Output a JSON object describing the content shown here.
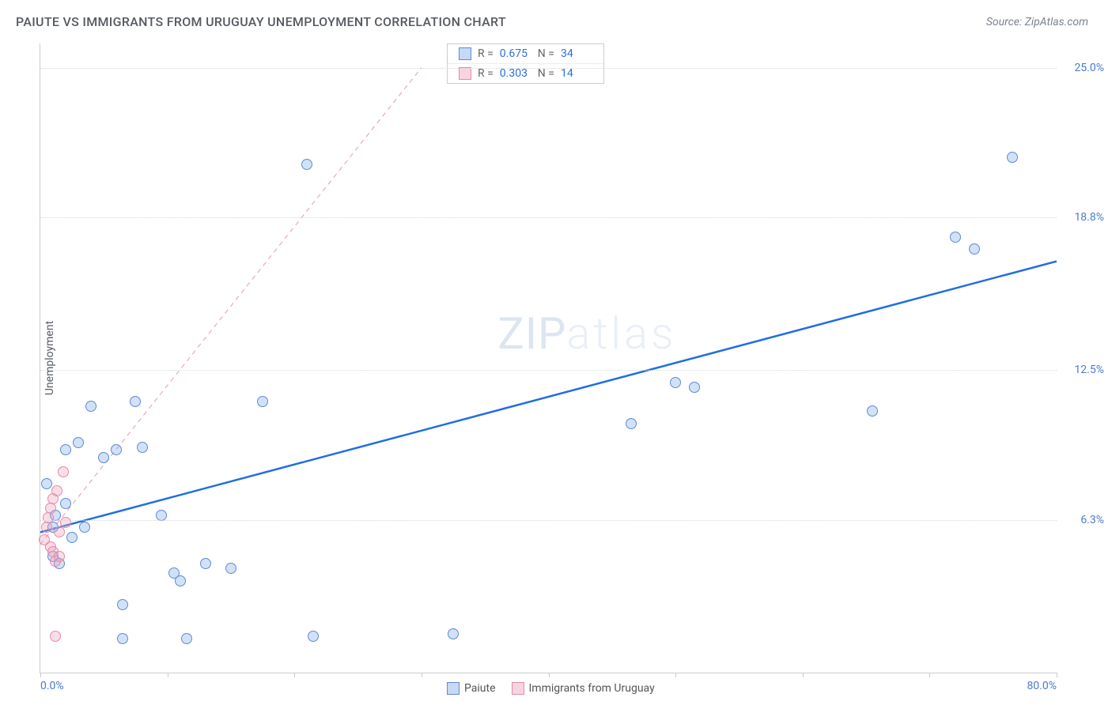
{
  "title": "PAIUTE VS IMMIGRANTS FROM URUGUAY UNEMPLOYMENT CORRELATION CHART",
  "source": "Source: ZipAtlas.com",
  "ylabel": "Unemployment",
  "watermark_bold": "ZIP",
  "watermark_thin": "atlas",
  "chart": {
    "type": "scatter",
    "xlim": [
      0,
      80
    ],
    "ylim": [
      0,
      26
    ],
    "x_axis_labels": [
      {
        "pos": 0,
        "text": "0.0%"
      },
      {
        "pos": 80,
        "text": "80.0%"
      }
    ],
    "x_tick_positions": [
      0,
      10,
      20,
      30,
      40,
      50,
      60,
      70,
      80
    ],
    "y_gridlines": [
      {
        "val": 6.3,
        "label": "6.3%"
      },
      {
        "val": 12.5,
        "label": "12.5%"
      },
      {
        "val": 18.8,
        "label": "18.8%"
      },
      {
        "val": 25.0,
        "label": "25.0%"
      }
    ],
    "background_color": "#ffffff",
    "grid_color": "#d4d7db",
    "axis_color": "#c9ccd1",
    "marker_radius": 7,
    "series": [
      {
        "name": "Paiute",
        "color_fill": "rgba(130,170,230,0.35)",
        "color_stroke": "#5b8bd8",
        "r_label": "R =",
        "r_value": "0.675",
        "n_label": "N =",
        "n_value": "34",
        "trend": {
          "x1": 0,
          "y1": 5.8,
          "x2": 80,
          "y2": 17.0,
          "stroke": "#1f6fe0",
          "width": 2.5,
          "dash": "none"
        },
        "points": [
          [
            0.5,
            7.8
          ],
          [
            1.0,
            6.0
          ],
          [
            1.0,
            4.8
          ],
          [
            1.2,
            6.5
          ],
          [
            1.5,
            4.5
          ],
          [
            2.0,
            7.0
          ],
          [
            2.0,
            9.2
          ],
          [
            2.5,
            5.6
          ],
          [
            3.0,
            9.5
          ],
          [
            3.5,
            6.0
          ],
          [
            4.0,
            11.0
          ],
          [
            5.0,
            8.9
          ],
          [
            6.0,
            9.2
          ],
          [
            6.5,
            2.8
          ],
          [
            6.5,
            1.4
          ],
          [
            7.5,
            11.2
          ],
          [
            8.0,
            9.3
          ],
          [
            9.5,
            6.5
          ],
          [
            10.5,
            4.1
          ],
          [
            11.0,
            3.8
          ],
          [
            11.5,
            1.4
          ],
          [
            13.0,
            4.5
          ],
          [
            15.0,
            4.3
          ],
          [
            17.5,
            11.2
          ],
          [
            21.5,
            1.5
          ],
          [
            21.0,
            21.0
          ],
          [
            32.5,
            1.6
          ],
          [
            46.5,
            10.3
          ],
          [
            50.0,
            12.0
          ],
          [
            51.5,
            11.8
          ],
          [
            65.5,
            10.8
          ],
          [
            72.0,
            18.0
          ],
          [
            73.5,
            17.5
          ],
          [
            76.5,
            21.3
          ]
        ]
      },
      {
        "name": "Immigrants from Uruguay",
        "color_fill": "rgba(240,160,185,0.35)",
        "color_stroke": "#e28ba9",
        "r_label": "R =",
        "r_value": "0.303",
        "n_label": "N =",
        "n_value": "14",
        "trend": {
          "x1": 0,
          "y1": 5.3,
          "x2": 30,
          "y2": 25.0,
          "stroke": "#e9a8bf",
          "width": 1.2,
          "dash": "6,5"
        },
        "points": [
          [
            0.3,
            5.5
          ],
          [
            0.5,
            6.0
          ],
          [
            0.6,
            6.4
          ],
          [
            0.8,
            5.2
          ],
          [
            0.8,
            6.8
          ],
          [
            1.0,
            5.0
          ],
          [
            1.0,
            7.2
          ],
          [
            1.2,
            4.6
          ],
          [
            1.3,
            7.5
          ],
          [
            1.5,
            5.8
          ],
          [
            1.5,
            4.8
          ],
          [
            1.8,
            8.3
          ],
          [
            2.0,
            6.2
          ],
          [
            1.2,
            1.5
          ]
        ]
      }
    ],
    "legend": {
      "items": [
        {
          "swatch": "blue",
          "label": "Paiute"
        },
        {
          "swatch": "pink",
          "label": "Immigrants from Uruguay"
        }
      ]
    }
  }
}
